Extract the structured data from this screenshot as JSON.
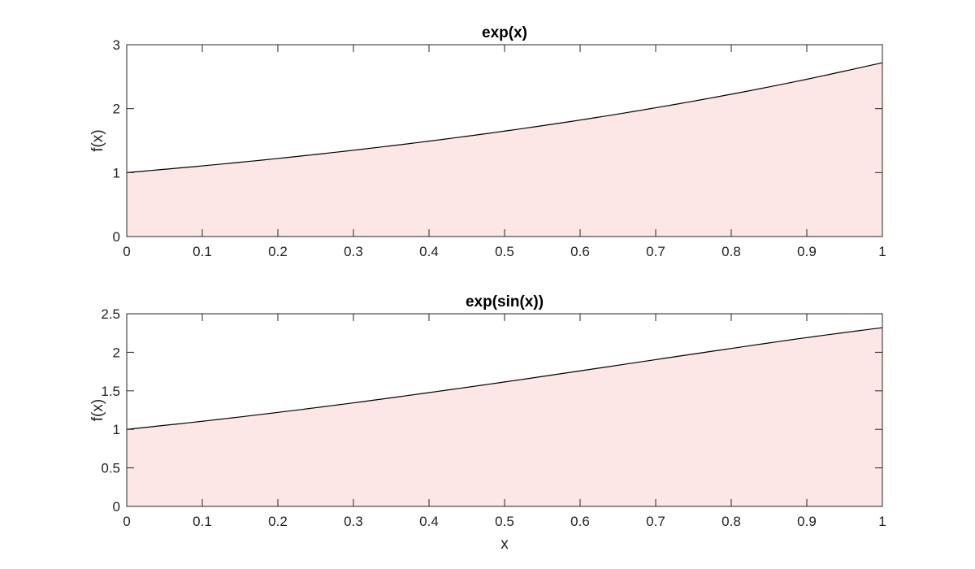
{
  "chart_data": [
    {
      "type": "area",
      "title": "exp(x)",
      "xlabel": "",
      "ylabel": "f(x)",
      "xlim": [
        0,
        1
      ],
      "ylim": [
        0,
        3
      ],
      "xticks": [
        "0",
        "0.1",
        "0.2",
        "0.3",
        "0.4",
        "0.5",
        "0.6",
        "0.7",
        "0.8",
        "0.9",
        "1"
      ],
      "yticks": [
        "0",
        "1",
        "2",
        "3"
      ],
      "x": [
        0,
        0.1,
        0.2,
        0.3,
        0.4,
        0.5,
        0.6,
        0.7,
        0.8,
        0.9,
        1.0
      ],
      "y": [
        1.0,
        1.105,
        1.221,
        1.35,
        1.492,
        1.649,
        1.822,
        2.014,
        2.226,
        2.46,
        2.718
      ],
      "fill_color": "#fde6e6",
      "line_color": "#000000"
    },
    {
      "type": "area",
      "title": "exp(sin(x))",
      "xlabel": "x",
      "ylabel": "f(x)",
      "xlim": [
        0,
        1
      ],
      "ylim": [
        0,
        2.5
      ],
      "xticks": [
        "0",
        "0.1",
        "0.2",
        "0.3",
        "0.4",
        "0.5",
        "0.6",
        "0.7",
        "0.8",
        "0.9",
        "1"
      ],
      "yticks": [
        "0",
        "0.5",
        "1",
        "1.5",
        "2",
        "2.5"
      ],
      "x": [
        0,
        0.1,
        0.2,
        0.3,
        0.4,
        0.5,
        0.6,
        0.7,
        0.8,
        0.9,
        1.0
      ],
      "y": [
        1.0,
        1.105,
        1.22,
        1.344,
        1.477,
        1.615,
        1.759,
        1.905,
        2.05,
        2.191,
        2.32
      ],
      "fill_color": "#fde6e6",
      "line_color": "#000000"
    }
  ]
}
